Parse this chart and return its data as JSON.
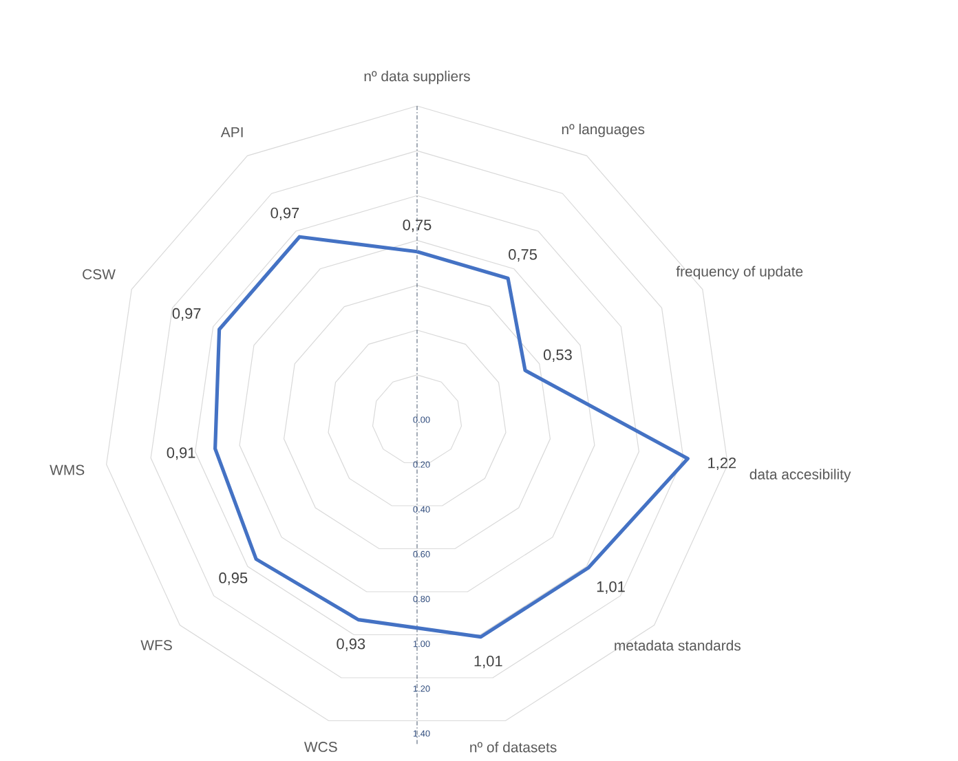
{
  "chart_data": {
    "type": "radar",
    "categories": [
      "nº data suppliers",
      "nº languages",
      "frequency of update",
      "data accesibility",
      "metadata standards",
      "nº of datasets",
      "WCS",
      "WFS",
      "WMS",
      "CSW",
      "API"
    ],
    "series": [
      {
        "color": "#4472c4",
        "values": [
          0.75,
          0.75,
          0.53,
          1.22,
          1.01,
          1.01,
          0.93,
          0.95,
          0.91,
          0.97,
          0.97
        ],
        "value_labels": [
          "0,75",
          "0,75",
          "0,53",
          "1,22",
          "1,01",
          "1,01",
          "0,93",
          "0,95",
          "0,91",
          "0,97",
          "0,97"
        ]
      }
    ],
    "ylim": [
      0,
      1.4
    ],
    "yticks": [
      {
        "value": 0,
        "label": "0.00"
      },
      {
        "value": 0.2,
        "label": "0.20"
      },
      {
        "value": 0.4,
        "label": "0.40"
      },
      {
        "value": 0.6,
        "label": "0.60"
      },
      {
        "value": 0.8,
        "label": "0.80"
      },
      {
        "value": 1.0,
        "label": "1.00"
      },
      {
        "value": 1.2,
        "label": "1.20"
      },
      {
        "value": 1.4,
        "label": "1.40"
      }
    ],
    "grid": true,
    "line_style": "solid"
  }
}
